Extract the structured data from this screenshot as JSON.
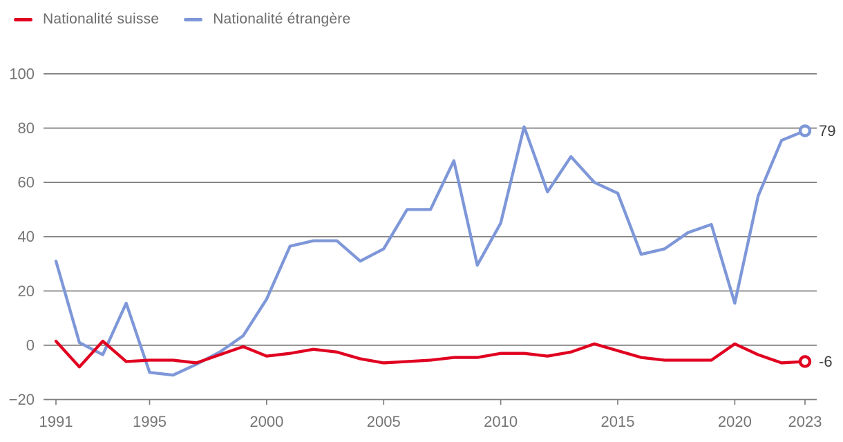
{
  "legend": {
    "items": [
      {
        "label": "Nationalité suisse",
        "color": "#e00220"
      },
      {
        "label": "Nationalité étrangère",
        "color": "#7e97d8"
      }
    ]
  },
  "chart_data": {
    "type": "line",
    "title": "",
    "xlabel": "",
    "ylabel": "",
    "x": [
      1991,
      1992,
      1993,
      1994,
      1995,
      1996,
      1997,
      1998,
      1999,
      2000,
      2001,
      2002,
      2003,
      2004,
      2005,
      2006,
      2007,
      2008,
      2009,
      2010,
      2011,
      2012,
      2013,
      2014,
      2015,
      2016,
      2017,
      2018,
      2019,
      2020,
      2021,
      2022,
      2023
    ],
    "series": [
      {
        "name": "Nationalité suisse",
        "color": "#e00220",
        "end_label": "-6",
        "values": [
          1.5,
          -8,
          1.5,
          -6,
          -5.5,
          -5.5,
          -6.5,
          -3.5,
          -0.5,
          -4,
          -3,
          -1.5,
          -2.5,
          -5,
          -6.5,
          -6,
          -5.5,
          -4.5,
          -4.5,
          -3,
          -3,
          -4,
          -2.5,
          0.5,
          -2,
          -4.5,
          -5.5,
          -5.5,
          -5.5,
          0.5,
          -3.5,
          -6.5,
          -6
        ]
      },
      {
        "name": "Nationalité étrangère",
        "color": "#7e97d8",
        "end_label": "79",
        "values": [
          31,
          1,
          -3.5,
          15.5,
          -10,
          -11,
          -7,
          -2.5,
          3.5,
          17,
          36.5,
          38.5,
          38.5,
          31,
          35.5,
          50,
          50,
          68,
          29.5,
          45,
          80.5,
          56.5,
          69.5,
          60,
          56,
          33.5,
          35.5,
          41.5,
          44.5,
          15.5,
          55,
          75.5,
          79
        ]
      }
    ],
    "ylim": [
      -20,
      100
    ],
    "yticks": [
      "100",
      "80",
      "60",
      "40",
      "20",
      "0",
      "−20"
    ],
    "ytick_values": [
      100,
      80,
      60,
      40,
      20,
      0,
      -20
    ],
    "xticks": [
      1991,
      1995,
      2000,
      2005,
      2010,
      2015,
      2020,
      2023
    ],
    "grid": "horizontal",
    "legend_position": "top-left"
  },
  "colors": {
    "grid": "#7e7e7e",
    "axis_text": "#757575",
    "legend_text": "#6d6d6d",
    "end_label_text": "#3d3d3d",
    "background": "#ffffff"
  }
}
